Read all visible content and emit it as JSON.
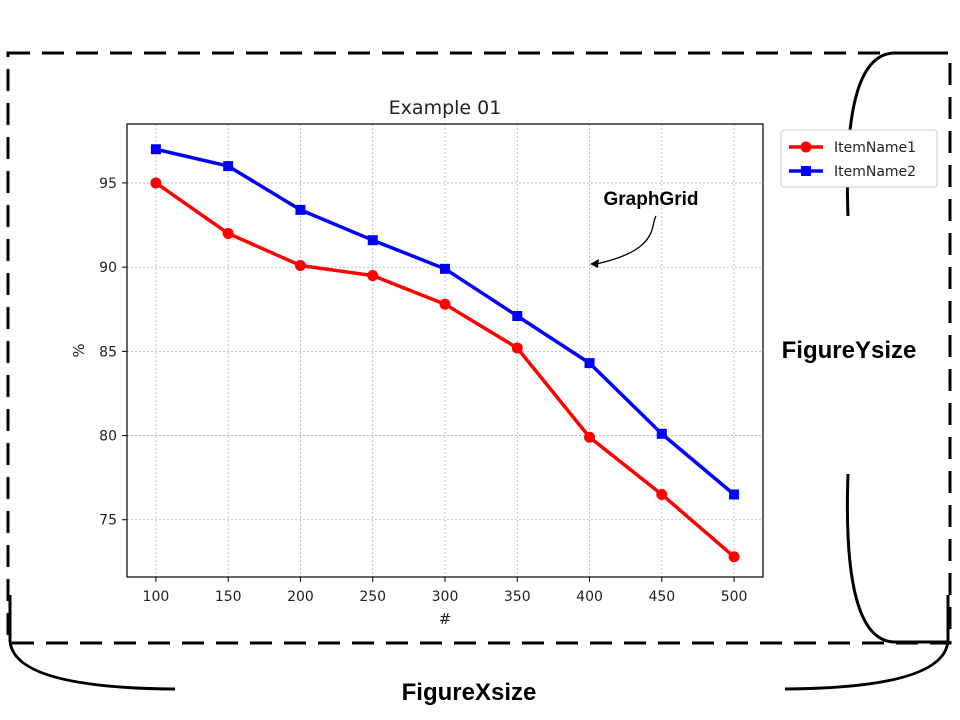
{
  "chart_data": {
    "type": "line",
    "title": "Example 01",
    "xlabel": "#",
    "ylabel": "%",
    "x": [
      100,
      150,
      200,
      250,
      300,
      350,
      400,
      450,
      500
    ],
    "xlim": [
      80,
      520
    ],
    "ylim": [
      71.6,
      98.5
    ],
    "xticks": [
      100,
      150,
      200,
      250,
      300,
      350,
      400,
      450,
      500
    ],
    "yticks": [
      75,
      80,
      85,
      90,
      95
    ],
    "grid": true,
    "legend_position": "outside-top-right",
    "series": [
      {
        "name": "ItemName1",
        "color": "#ff0000",
        "marker": "circle",
        "values": [
          95.0,
          92.0,
          90.1,
          89.5,
          87.8,
          85.2,
          79.9,
          76.5,
          72.8
        ]
      },
      {
        "name": "ItemName2",
        "color": "#0000ff",
        "marker": "square",
        "values": [
          97.0,
          96.0,
          93.4,
          91.6,
          89.9,
          87.1,
          84.3,
          80.1,
          76.5
        ]
      }
    ],
    "annotation": {
      "text": "GraphGrid",
      "target": [
        400,
        90
      ]
    }
  },
  "figure_labels": {
    "x_size": "FigureXsize",
    "y_size": "FigureYsize"
  }
}
